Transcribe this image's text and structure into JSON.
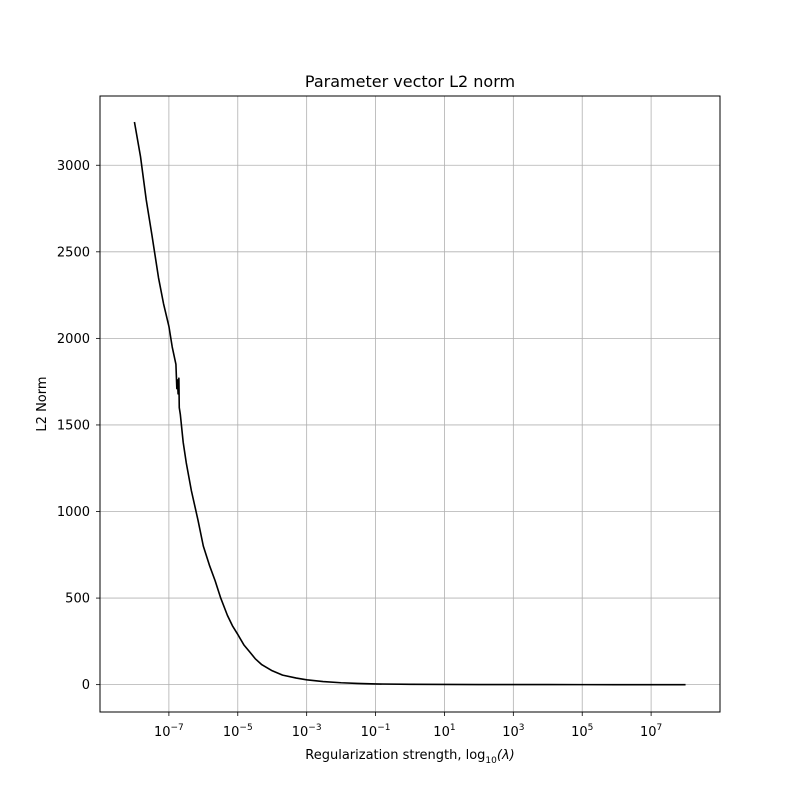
{
  "chart_data": {
    "type": "line",
    "title": "Parameter vector L2 norm",
    "xlabel": "Regularization strength, log",
    "xlabel_sub": "10",
    "xlabel_paren": "(λ)",
    "ylabel": "L2 Norm",
    "x_scale": "log",
    "xlim": [
      1e-09,
      1000000000.0
    ],
    "ylim": [
      -158,
      3400
    ],
    "x_ticks": [
      {
        "value": 1e-07,
        "base": "10",
        "exp": "−7"
      },
      {
        "value": 1e-05,
        "base": "10",
        "exp": "−5"
      },
      {
        "value": 0.001,
        "base": "10",
        "exp": "−3"
      },
      {
        "value": 0.1,
        "base": "10",
        "exp": "−1"
      },
      {
        "value": 10.0,
        "base": "10",
        "exp": "1"
      },
      {
        "value": 1000.0,
        "base": "10",
        "exp": "3"
      },
      {
        "value": 100000.0,
        "base": "10",
        "exp": "5"
      },
      {
        "value": 10000000.0,
        "base": "10",
        "exp": "7"
      }
    ],
    "y_ticks": [
      0,
      500,
      1000,
      1500,
      2000,
      2500,
      3000
    ],
    "grid": true,
    "line_color": "#000000",
    "grid_color": "#b0b0b0",
    "series": [
      {
        "x": [
          1e-08,
          1.5e-08,
          2.2e-08,
          3.2e-08,
          5e-08,
          7e-08,
          1e-07,
          1.25e-07,
          1.6e-07,
          1.7e-07,
          1.78e-07,
          1.85e-07,
          1.95e-07,
          2e-07,
          2.15e-07,
          2.6e-07,
          3.2e-07,
          4.5e-07,
          7e-07,
          1e-06,
          1.5e-06,
          2.2e-06,
          3.2e-06,
          5e-06,
          7e-06,
          1e-05,
          1.5e-05,
          2.2e-05,
          3.2e-05,
          5e-05,
          0.0001,
          0.0002,
          0.0005,
          0.001,
          0.003,
          0.01,
          0.03,
          0.1,
          1,
          10,
          100,
          1000,
          10000.0,
          100000.0,
          1000000.0,
          10000000.0,
          100000000.0
        ],
        "y": [
          3250,
          3050,
          2800,
          2600,
          2350,
          2200,
          2070,
          1950,
          1850,
          1710,
          1760,
          1680,
          1770,
          1600,
          1560,
          1400,
          1280,
          1120,
          950,
          800,
          690,
          600,
          500,
          400,
          340,
          290,
          230,
          190,
          150,
          115,
          80,
          55,
          38,
          28,
          18,
          11,
          7,
          4,
          2,
          1,
          0.5,
          0.3,
          0.2,
          0.1,
          0.05,
          0.02,
          0.01
        ]
      }
    ]
  }
}
